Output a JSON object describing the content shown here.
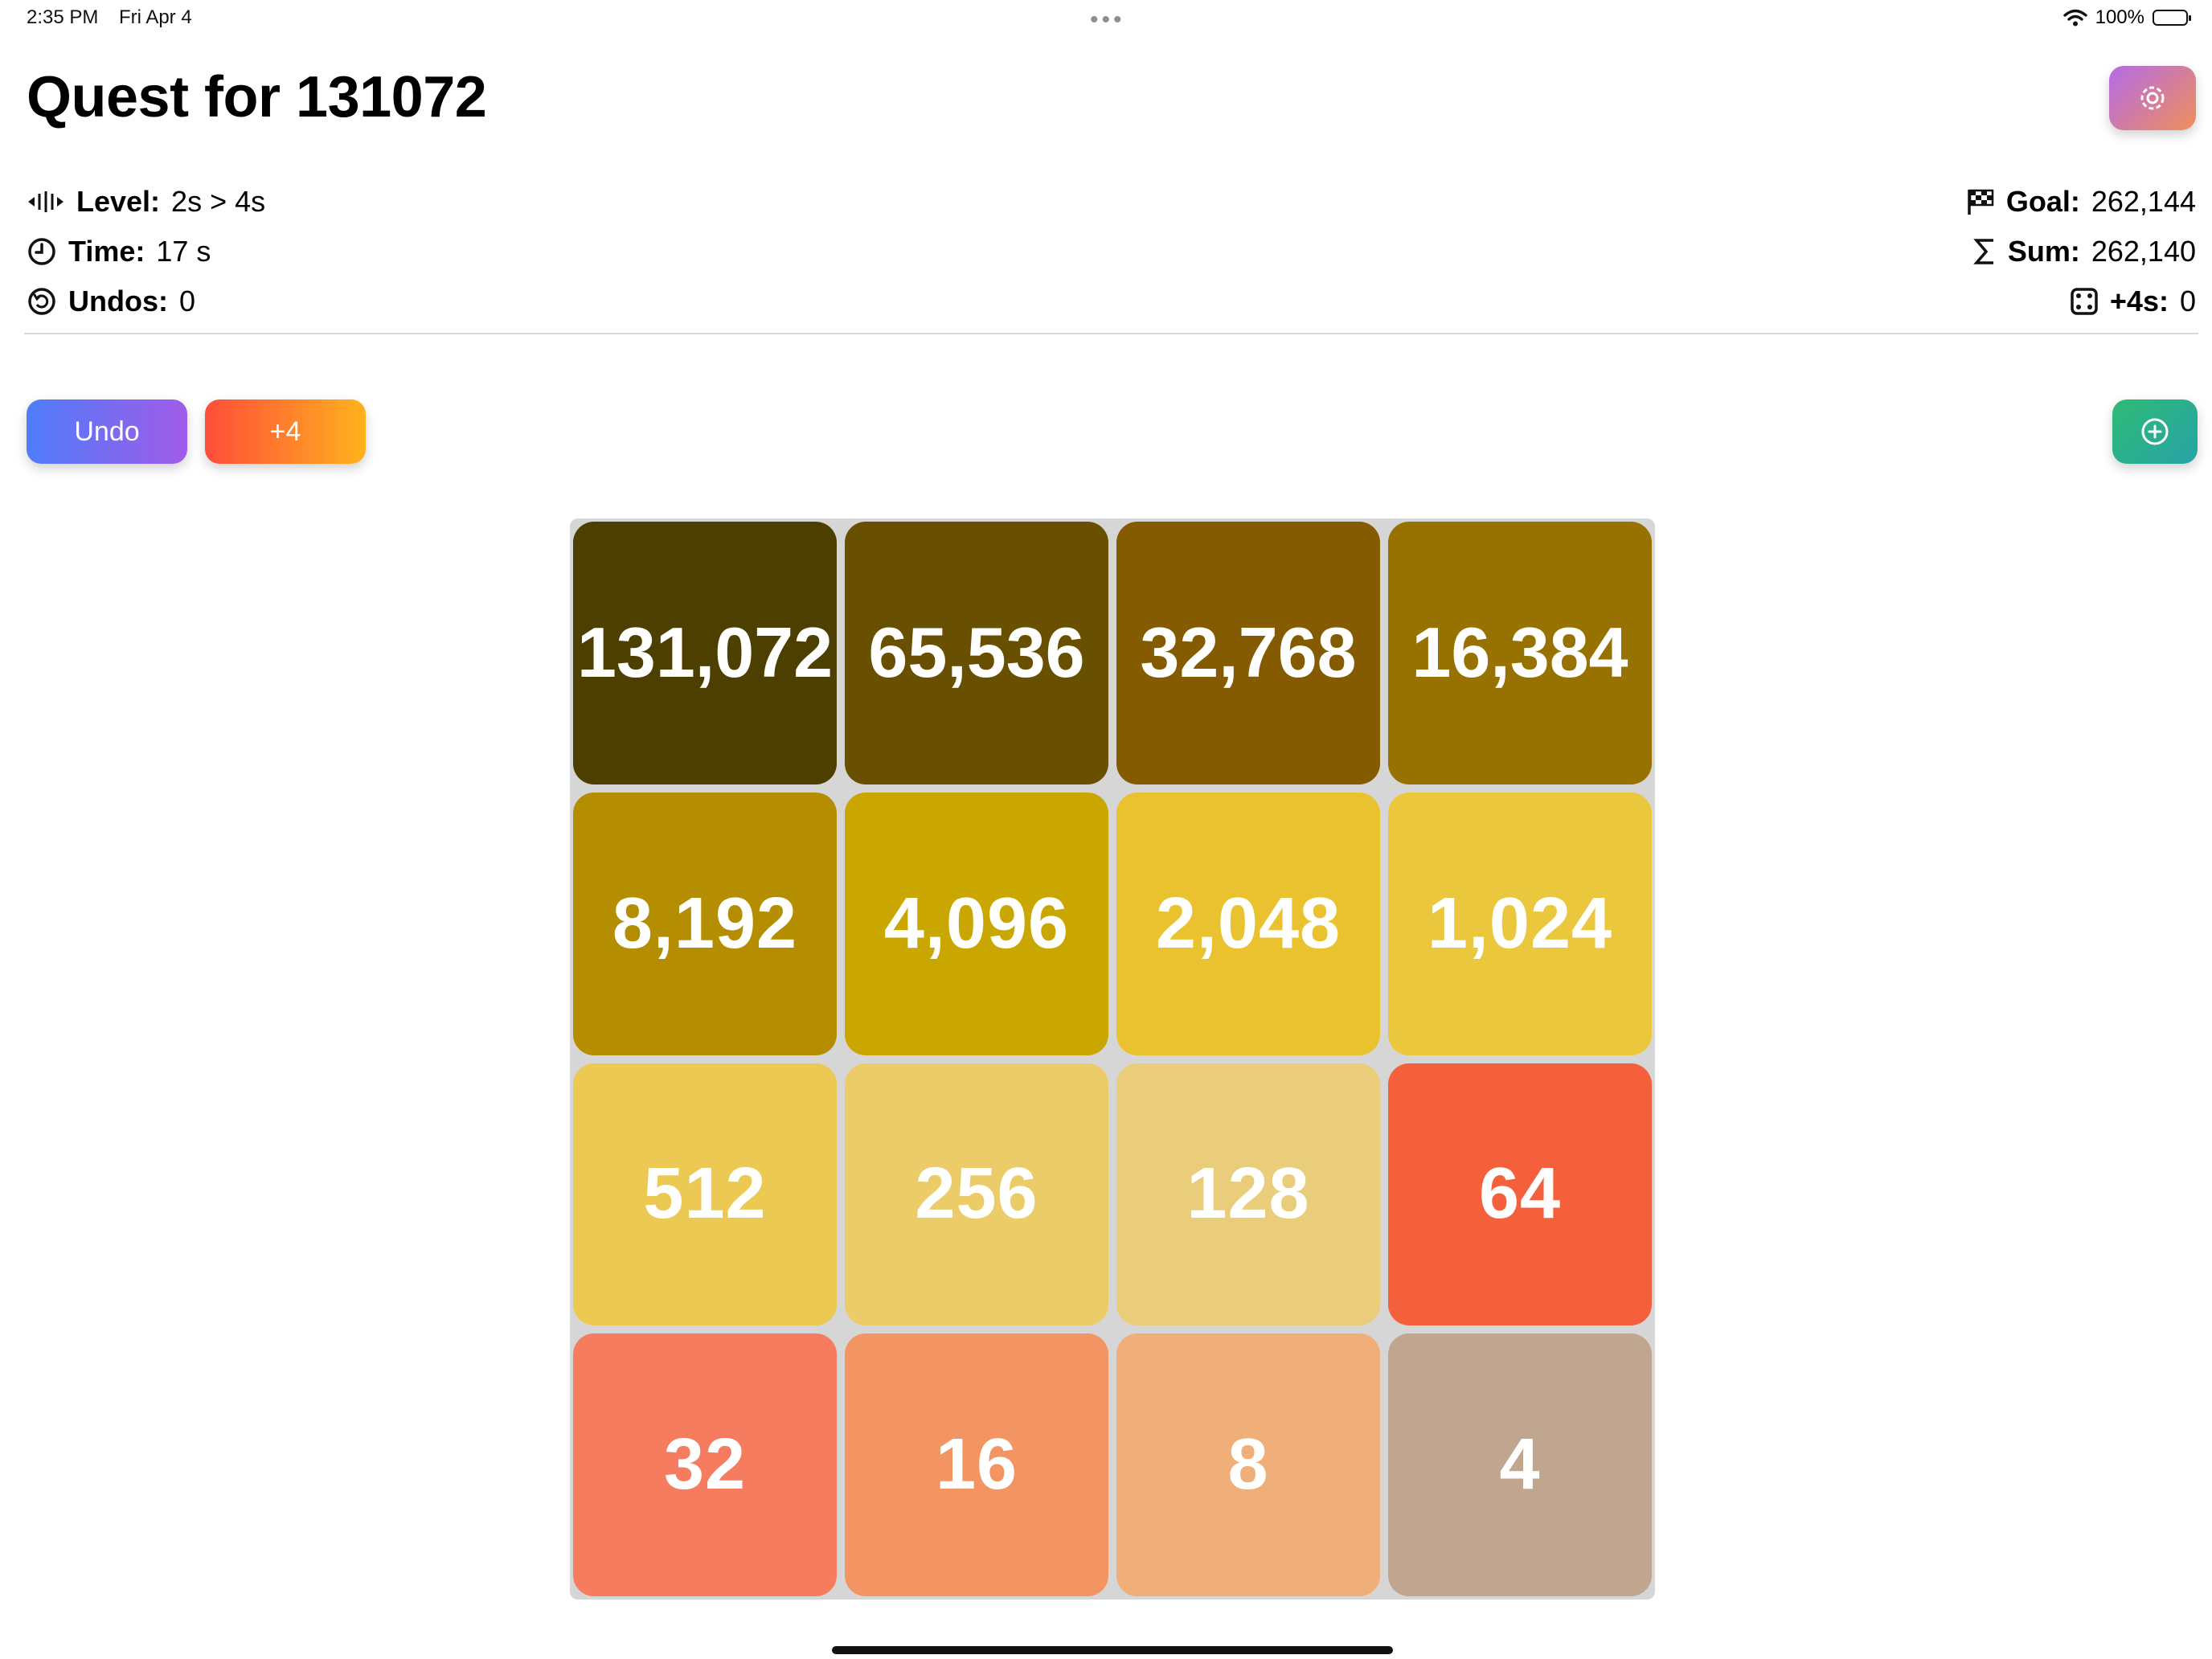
{
  "status_bar": {
    "time": "2:35 PM",
    "date": "Fri Apr 4",
    "battery": "100%"
  },
  "title": "Quest for 131072",
  "stats_left": [
    {
      "icon": "level-arrows-icon",
      "label": "Level:",
      "value": "2s > 4s"
    },
    {
      "icon": "clock-icon",
      "label": "Time:",
      "value": "17 s"
    },
    {
      "icon": "undo-circle-icon",
      "label": "Undos:",
      "value": "0"
    }
  ],
  "stats_right": [
    {
      "icon": "checkered-flag-icon",
      "label": "Goal:",
      "value": "262,144"
    },
    {
      "icon": "sigma-icon",
      "label": "Sum:",
      "value": "262,140"
    },
    {
      "icon": "dice-icon",
      "label": "+4s:",
      "value": "0"
    }
  ],
  "buttons": {
    "undo": "Undo",
    "plus4": "+4"
  },
  "board": {
    "tiles": [
      {
        "value": "131,072",
        "color": "#4d3f00"
      },
      {
        "value": "65,536",
        "color": "#694f00"
      },
      {
        "value": "32,768",
        "color": "#845b00"
      },
      {
        "value": "16,384",
        "color": "#987200"
      },
      {
        "value": "8,192",
        "color": "#b48e00"
      },
      {
        "value": "4,096",
        "color": "#caa700"
      },
      {
        "value": "2,048",
        "color": "#eac22f"
      },
      {
        "value": "1,024",
        "color": "#ebc73e"
      },
      {
        "value": "512",
        "color": "#ebc952"
      },
      {
        "value": "256",
        "color": "#ebcc68"
      },
      {
        "value": "128",
        "color": "#eacd7a"
      },
      {
        "value": "64",
        "color": "#f5603c"
      },
      {
        "value": "32",
        "color": "#f57c5f"
      },
      {
        "value": "16",
        "color": "#f29563"
      },
      {
        "value": "8",
        "color": "#f0ae79"
      },
      {
        "value": "4",
        "color": "#c0a68e"
      }
    ]
  }
}
